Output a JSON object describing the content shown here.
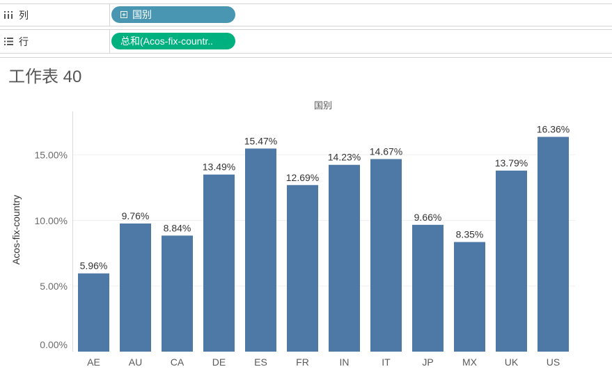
{
  "shelves": {
    "columns": {
      "label": "列",
      "icon": "columns-icon",
      "pill": {
        "label": "国别",
        "icon": "expand-icon",
        "color": "#4996b2"
      }
    },
    "rows": {
      "label": "行",
      "icon": "rows-icon",
      "pill": {
        "label": "总和(Acos-fix-countr..",
        "color": "#00b180"
      }
    }
  },
  "chart_data": {
    "type": "bar",
    "title": "工作表 40",
    "xlabel": "国别",
    "ylabel": "Acos-fix-country",
    "categories": [
      "AE",
      "AU",
      "CA",
      "DE",
      "ES",
      "FR",
      "IN",
      "IT",
      "JP",
      "MX",
      "UK",
      "US"
    ],
    "values": [
      5.96,
      9.76,
      8.84,
      13.49,
      15.47,
      12.69,
      14.23,
      14.67,
      9.66,
      8.35,
      13.79,
      16.36
    ],
    "data_labels": [
      "5.96%",
      "9.76%",
      "8.84%",
      "13.49%",
      "15.47%",
      "12.69%",
      "14.23%",
      "14.67%",
      "9.66%",
      "8.35%",
      "13.79%",
      "16.36%"
    ],
    "y_ticks": [
      0,
      5,
      10,
      15
    ],
    "y_tick_labels": [
      "0.00%",
      "5.00%",
      "10.00%",
      "15.00%"
    ],
    "ylim": [
      0,
      18.3
    ],
    "grid": true,
    "bar_color": "#4e79a7"
  }
}
